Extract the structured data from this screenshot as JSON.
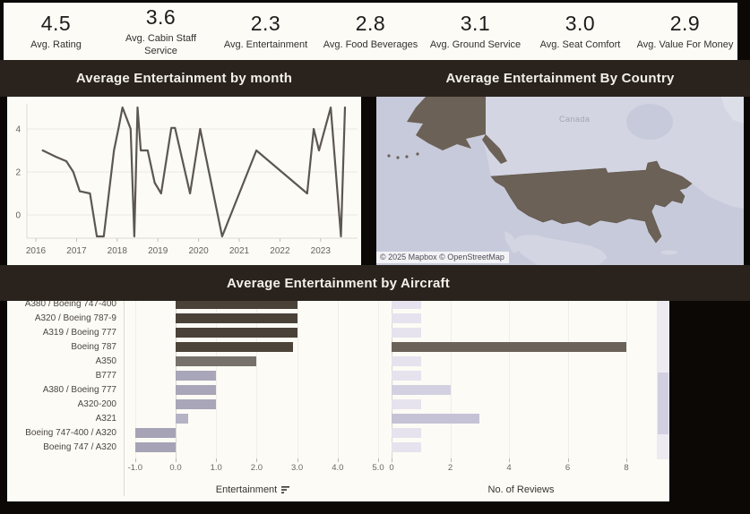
{
  "kpis": [
    {
      "value": "4.5",
      "label": "Avg. Rating"
    },
    {
      "value": "3.6",
      "label": "Avg. Cabin Staff Service"
    },
    {
      "value": "2.3",
      "label": "Avg. Entertainment"
    },
    {
      "value": "2.8",
      "label": "Avg. Food Beverages"
    },
    {
      "value": "3.1",
      "label": "Avg. Ground Service"
    },
    {
      "value": "3.0",
      "label": "Avg. Seat Comfort"
    },
    {
      "value": "2.9",
      "label": "Avg. Value For Money"
    }
  ],
  "panels": {
    "line": {
      "title": "Average Entertainment by month"
    },
    "map": {
      "title": "Average Entertainment By Country",
      "attribution": "© 2025 Mapbox © OpenStreetMap",
      "country_label": "Canada",
      "highlighted_country": "United States"
    },
    "bars": {
      "title": "Average Entertainment by Aircraft"
    }
  },
  "chart_data": [
    {
      "type": "line",
      "title": "Average Entertainment by month",
      "xlabel": "",
      "ylabel": "",
      "xticks": [
        2016,
        2017,
        2018,
        2019,
        2020,
        2021,
        2022,
        2023
      ],
      "yticks": [
        0,
        2,
        4
      ],
      "ylim": [
        -1.5,
        5.3
      ],
      "xlim": [
        2015.9,
        2024.0
      ],
      "points": [
        [
          2016.17,
          3
        ],
        [
          2016.5,
          2.7
        ],
        [
          2016.75,
          2.5
        ],
        [
          2016.92,
          2
        ],
        [
          2017.08,
          1.1
        ],
        [
          2017.33,
          1
        ],
        [
          2017.5,
          -1
        ],
        [
          2017.67,
          -1
        ],
        [
          2017.92,
          3
        ],
        [
          2018.04,
          4.1
        ],
        [
          2018.13,
          5
        ],
        [
          2018.29,
          4.2
        ],
        [
          2018.33,
          4
        ],
        [
          2018.42,
          -1
        ],
        [
          2018.5,
          5
        ],
        [
          2018.58,
          3
        ],
        [
          2018.75,
          3
        ],
        [
          2018.92,
          1.5
        ],
        [
          2019.08,
          1
        ],
        [
          2019.33,
          4.05
        ],
        [
          2019.42,
          4.05
        ],
        [
          2019.79,
          1
        ],
        [
          2020.04,
          4
        ],
        [
          2020.58,
          -1
        ],
        [
          2021.42,
          3
        ],
        [
          2022.67,
          1
        ],
        [
          2022.83,
          4
        ],
        [
          2022.96,
          3
        ],
        [
          2023.25,
          5
        ],
        [
          2023.5,
          -1
        ],
        [
          2023.6,
          5
        ]
      ]
    },
    {
      "type": "bar",
      "title": "Average Entertainment by Aircraft",
      "orientation": "horizontal",
      "categories": [
        "A380 / Boeing 747-400",
        "A320 / Boeing 787-9",
        "A319 / Boeing 777",
        "Boeing 787",
        "A350",
        "B777",
        "A380 / Boeing 777",
        "A320-200",
        "A321",
        "Boeing 747-400 / A320",
        "Boeing 747 / A320"
      ],
      "series": [
        {
          "name": "Entertainment",
          "xlabel": "Entertainment",
          "sorted": "descending",
          "values": [
            3,
            3,
            3,
            2.9,
            2,
            1,
            1,
            1,
            0.3,
            -1,
            -1
          ],
          "colors": [
            "#4a4138",
            "#4a4138",
            "#4a4138",
            "#4d4439",
            "#77716b",
            "#a8a6b8",
            "#a8a6b8",
            "#a8a6b8",
            "#b4b2c4",
            "#a5a3b5",
            "#a5a3b5"
          ],
          "xticks": [
            -1,
            0,
            1,
            2,
            3,
            4,
            5
          ],
          "xtick_labels": [
            "-1.0",
            "0.0",
            "1.0",
            "2.0",
            "3.0",
            "4.0",
            "5.0"
          ],
          "xlim": [
            -1.25,
            5.1
          ]
        },
        {
          "name": "No. of Reviews",
          "xlabel": "No. of Reviews",
          "values": [
            1,
            1,
            1,
            8,
            1,
            1,
            2,
            1,
            3,
            1,
            1
          ],
          "colors": [
            "#e6e3ee",
            "#e6e3ee",
            "#e6e3ee",
            "#6b6259",
            "#e6e3ee",
            "#e6e3ee",
            "#d3d0e1",
            "#e6e3ee",
            "#c5c2d6",
            "#e6e3ee",
            "#e6e3ee"
          ],
          "xticks": [
            0,
            2,
            4,
            6,
            8
          ],
          "xtick_labels": [
            "0",
            "2",
            "4",
            "6",
            "8"
          ],
          "xlim": [
            -0.2,
            9.0
          ]
        }
      ]
    }
  ],
  "colors": {
    "bg": "#0b0806",
    "band": "#2a231d",
    "panel": "#fdfbf5",
    "line": "#5d5751",
    "grid": "#ebe8e2",
    "axis_text": "#66615c",
    "sea": "#c7cada",
    "land": "#d3d5e2",
    "land_light": "#dcdee8",
    "us": "#6b6156",
    "scroll_track": "#edeaf1",
    "scroll_thumb": "#d2cfe0"
  }
}
